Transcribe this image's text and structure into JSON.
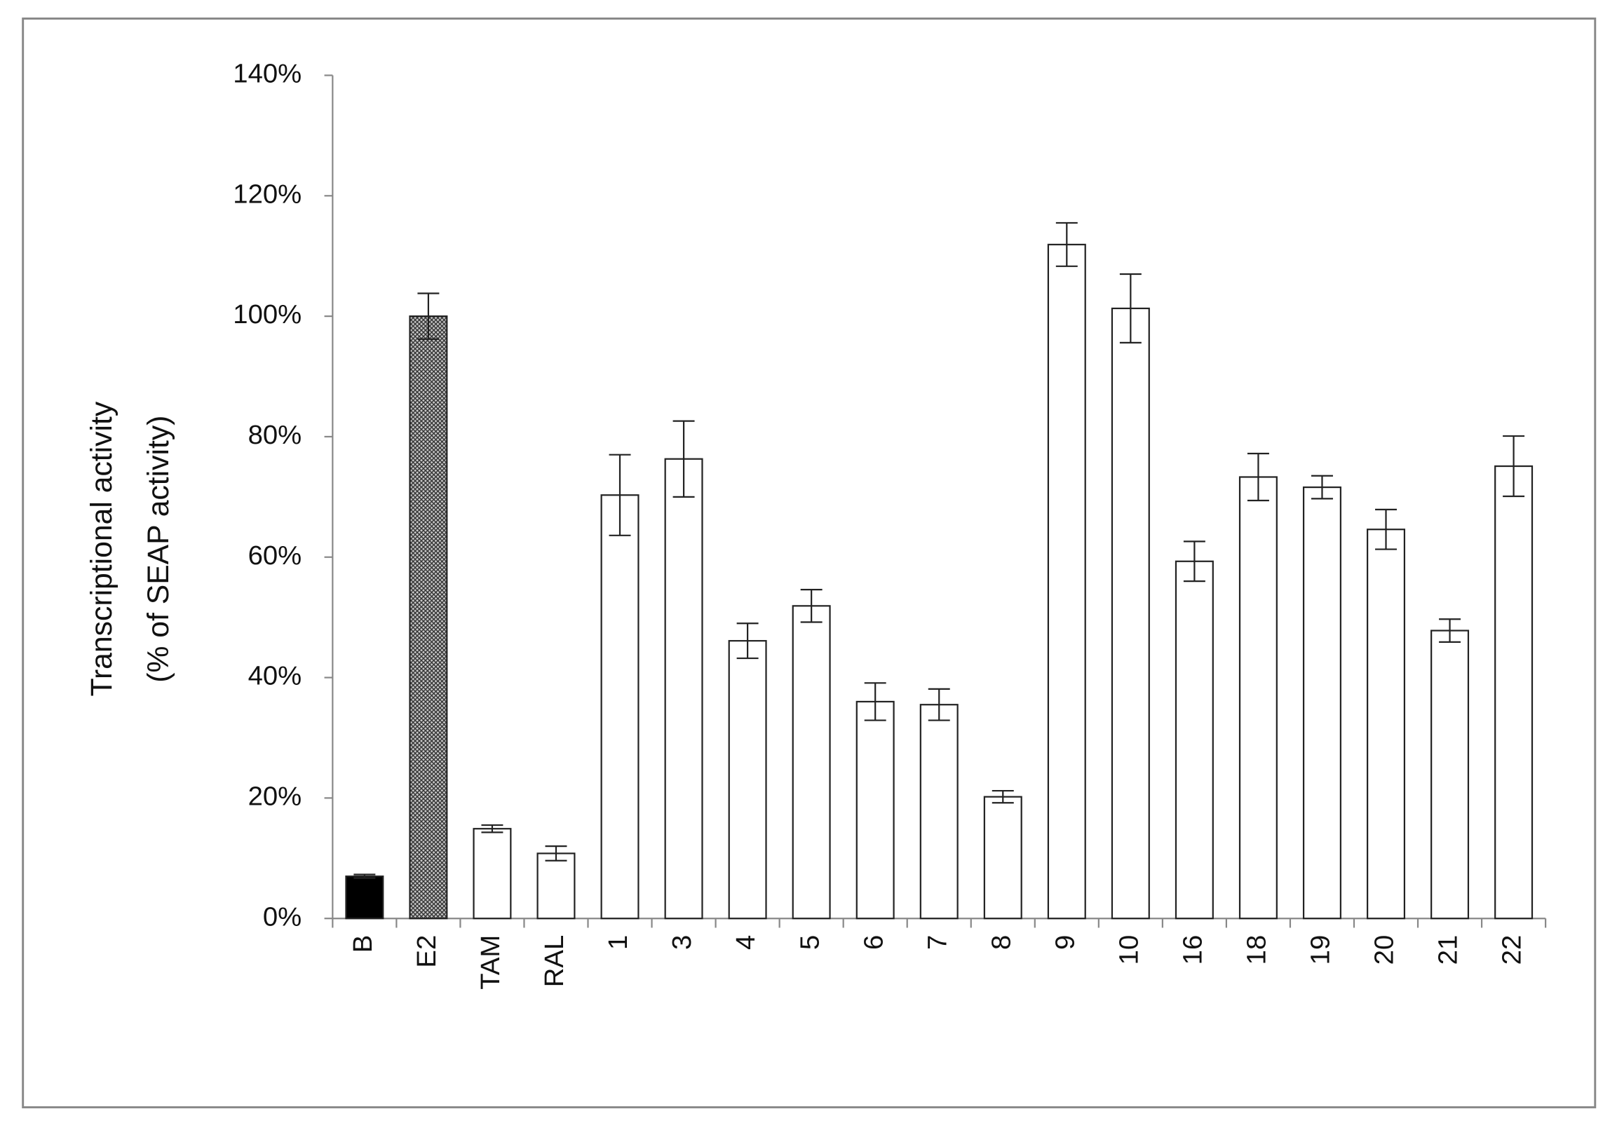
{
  "chart_data": {
    "type": "bar",
    "ylabel": [
      "Transcriptional activity",
      "(% of SEAP activity)"
    ],
    "categories": [
      "B",
      "E2",
      "TAM",
      "RAL",
      "1",
      "3",
      "4",
      "5",
      "6",
      "7",
      "8",
      "9",
      "10",
      "16",
      "18",
      "19",
      "20",
      "21",
      "22"
    ],
    "values": [
      7.0,
      100,
      14.9,
      10.8,
      70.3,
      76.3,
      46.1,
      51.9,
      36,
      35.5,
      20.2,
      111.9,
      101.3,
      59.3,
      73.3,
      71.6,
      64.6,
      47.8,
      75.1
    ],
    "errors": [
      0.3,
      3.8,
      0.6,
      1.2,
      6.7,
      6.3,
      2.9,
      2.7,
      3.1,
      2.6,
      1.0,
      3.6,
      5.7,
      3.3,
      3.9,
      1.9,
      3.3,
      1.9,
      5.0
    ],
    "colors": [
      "#000000",
      "#8a8a8a",
      "#ffffff",
      "#ffffff",
      "#ffffff",
      "#ffffff",
      "#ffffff",
      "#ffffff",
      "#ffffff",
      "#ffffff",
      "#ffffff",
      "#ffffff",
      "#ffffff",
      "#ffffff",
      "#ffffff",
      "#ffffff",
      "#ffffff",
      "#ffffff",
      "#ffffff"
    ],
    "ylim": [
      0,
      140
    ],
    "yticks": [
      {
        "value": 0,
        "label": "0%"
      },
      {
        "value": 20,
        "label": "20%"
      },
      {
        "value": 40,
        "label": "40%"
      },
      {
        "value": 60,
        "label": "60%"
      },
      {
        "value": 80,
        "label": "80%"
      },
      {
        "value": 100,
        "label": "100%"
      },
      {
        "value": 120,
        "label": "120%"
      },
      {
        "value": 140,
        "label": "140%"
      }
    ],
    "grid": false
  }
}
